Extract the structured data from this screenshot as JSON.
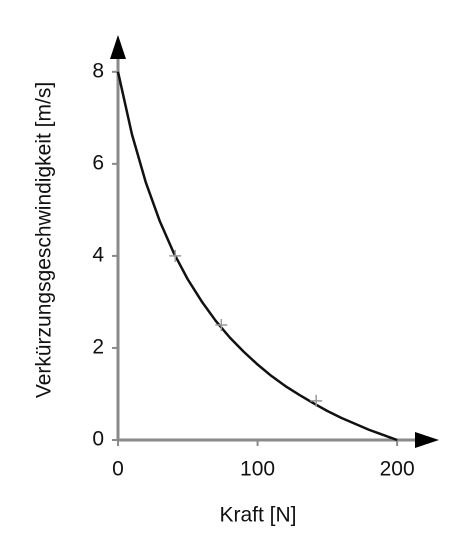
{
  "chart_data": {
    "type": "line",
    "x_label": "Kraft [N]",
    "y_label": "Verkürzungsgeschwindigkeit [m/s]",
    "xlim": [
      0,
      230
    ],
    "ylim": [
      0,
      8.8
    ],
    "xticks": [
      0,
      100,
      200
    ],
    "yticks": [
      0,
      2,
      4,
      6,
      8
    ],
    "series": [
      {
        "color": "#111111",
        "x": [
          0,
          10,
          20,
          30,
          40,
          50,
          60,
          70,
          80,
          90,
          100,
          110,
          120,
          130,
          140,
          150,
          160,
          170,
          180,
          190,
          200
        ],
        "values": [
          8.0,
          6.64,
          5.59,
          4.75,
          4.06,
          3.49,
          3.01,
          2.59,
          2.23,
          1.92,
          1.64,
          1.39,
          1.17,
          0.98,
          0.8,
          0.63,
          0.48,
          0.35,
          0.22,
          0.11,
          0
        ]
      }
    ],
    "points": {
      "color": "#999999",
      "x": [
        41,
        74,
        142
      ],
      "values": [
        4.0,
        2.5,
        0.85
      ]
    }
  }
}
